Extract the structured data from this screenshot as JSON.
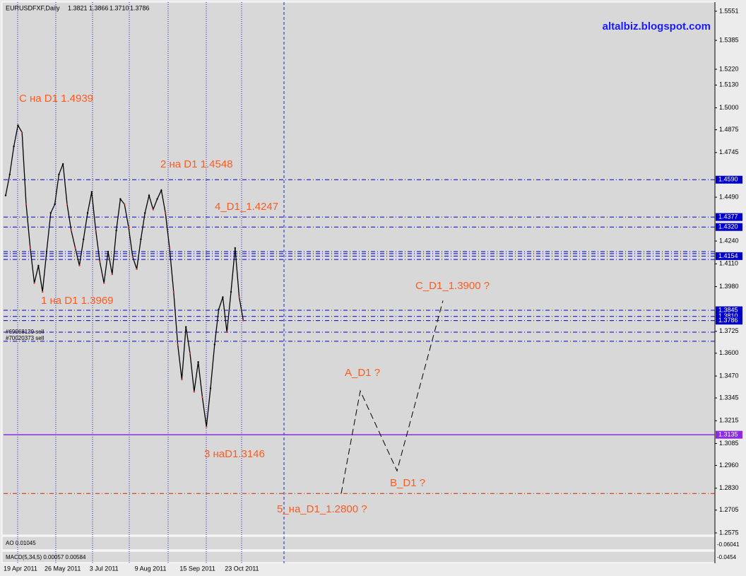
{
  "header": {
    "symbol": "EURUSDFXF,Daily",
    "ohlc": [
      "1.3821",
      "1.3866",
      "1.3710",
      "1.3786"
    ]
  },
  "watermark": "altalbiz.blogspot.com",
  "chart_data": {
    "type": "line",
    "color": "#000000",
    "categories": [
      "19 Apr 2011",
      null,
      null,
      null,
      null,
      null,
      null,
      null,
      null,
      null,
      "26 May 2011",
      null,
      null,
      null,
      null,
      null,
      null,
      null,
      null,
      null,
      null,
      "3 Jul 2011",
      null,
      null,
      null,
      null,
      null,
      null,
      null,
      null,
      null,
      null,
      "9 Aug 2011",
      null,
      null,
      null,
      null,
      null,
      null,
      null,
      null,
      null,
      null,
      "15 Sep 2011",
      null,
      null,
      null,
      null,
      null,
      null,
      null,
      null,
      null,
      null,
      "23 Oct 2011",
      null,
      null,
      null,
      null
    ],
    "values": [
      1.45,
      1.462,
      1.478,
      1.49,
      1.486,
      1.445,
      1.42,
      1.4,
      1.41,
      1.395,
      1.418,
      1.44,
      1.445,
      1.462,
      1.468,
      1.445,
      1.43,
      1.42,
      1.41,
      1.425,
      1.44,
      1.452,
      1.43,
      1.412,
      1.4,
      1.418,
      1.405,
      1.43,
      1.448,
      1.445,
      1.432,
      1.415,
      1.408,
      1.425,
      1.44,
      1.45,
      1.442,
      1.448,
      1.453,
      1.44,
      1.42,
      1.395,
      1.365,
      1.345,
      1.375,
      1.36,
      1.338,
      1.355,
      1.335,
      1.318,
      1.34,
      1.365,
      1.385,
      1.392,
      1.372,
      1.395,
      1.42,
      1.392,
      1.3786
    ],
    "projection": [
      1.28,
      1.3385,
      1.2929,
      1.39
    ],
    "ylim": [
      1.2563,
      1.5595
    ],
    "yticks": [
      {
        "value": 1.5551,
        "label": "1.5551"
      },
      {
        "value": 1.5385,
        "label": "1.5385"
      },
      {
        "value": 1.522,
        "label": "1.5220"
      },
      {
        "value": 1.513,
        "label": "1.5130"
      },
      {
        "value": 1.5,
        "label": "1.5000"
      },
      {
        "value": 1.4875,
        "label": "1.4875"
      },
      {
        "value": 1.4745,
        "label": "1.4745"
      },
      {
        "value": 1.449,
        "label": "1.4490"
      },
      {
        "value": 1.424,
        "label": "1.4240"
      },
      {
        "value": 1.411,
        "label": "1.4110"
      },
      {
        "value": 1.398,
        "label": "1.3980"
      },
      {
        "value": 1.3725,
        "label": "1.3725"
      },
      {
        "value": 1.36,
        "label": "1.3600"
      },
      {
        "value": 1.347,
        "label": "1.3470"
      },
      {
        "value": 1.3345,
        "label": "1.3345"
      },
      {
        "value": 1.3215,
        "label": "1.3215"
      },
      {
        "value": 1.3085,
        "label": "1.3085"
      },
      {
        "value": 1.296,
        "label": "1.2960"
      },
      {
        "value": 1.283,
        "label": "1.2830"
      },
      {
        "value": 1.2705,
        "label": "1.2705"
      },
      {
        "value": 1.2575,
        "label": "1.2575"
      }
    ],
    "levels": [
      {
        "value": 1.459,
        "label": "1.4590",
        "color": "#0000c8"
      },
      {
        "value": 1.4377,
        "label": "1.4377",
        "color": "#0000c8"
      },
      {
        "value": 1.432,
        "label": "1.4320",
        "color": "#0000c8"
      },
      {
        "value": 1.418,
        "color": "#0000c8"
      },
      {
        "value": 1.4168,
        "color": "#0000c8"
      },
      {
        "value": 1.4154,
        "label": "1.4154",
        "color": "#0000c8"
      },
      {
        "value": 1.4135,
        "color": "#0000c8"
      },
      {
        "value": 1.3845,
        "label": "1.3845",
        "color": "#0000c8"
      },
      {
        "value": 1.381,
        "label": "1.3810",
        "color": "#0000c8"
      },
      {
        "value": 1.3786,
        "label": "1.3786",
        "color": "#0000c8"
      },
      {
        "value": 1.372,
        "color": "#0000c8"
      },
      {
        "value": 1.3668,
        "color": "#0000c8"
      },
      {
        "value": 1.3135,
        "label": "1.3135",
        "color": "#8a2be2",
        "solid": true
      },
      {
        "value": 1.28,
        "color": "#cc2200"
      }
    ],
    "annotations": [
      "C на D1 1.4939",
      "2 на D1 1.4548",
      "4_D1_1.4247",
      "1 на D1 1.3969",
      "3 наD1.3146",
      "C_D1_1.3900 ?",
      "A_D1 ?",
      "B_D1 ?",
      "5_на_D1_1.2800 ?"
    ],
    "orders": [
      "#69968139 sell",
      "#70020373 sell"
    ]
  },
  "indicators": {
    "ao": {
      "label": "AO 0.01045",
      "tick": "-0.06041"
    },
    "macd": {
      "label": "MACD(5,34,5) 0.00057 0.00584",
      "tick": "-0.0454"
    }
  }
}
